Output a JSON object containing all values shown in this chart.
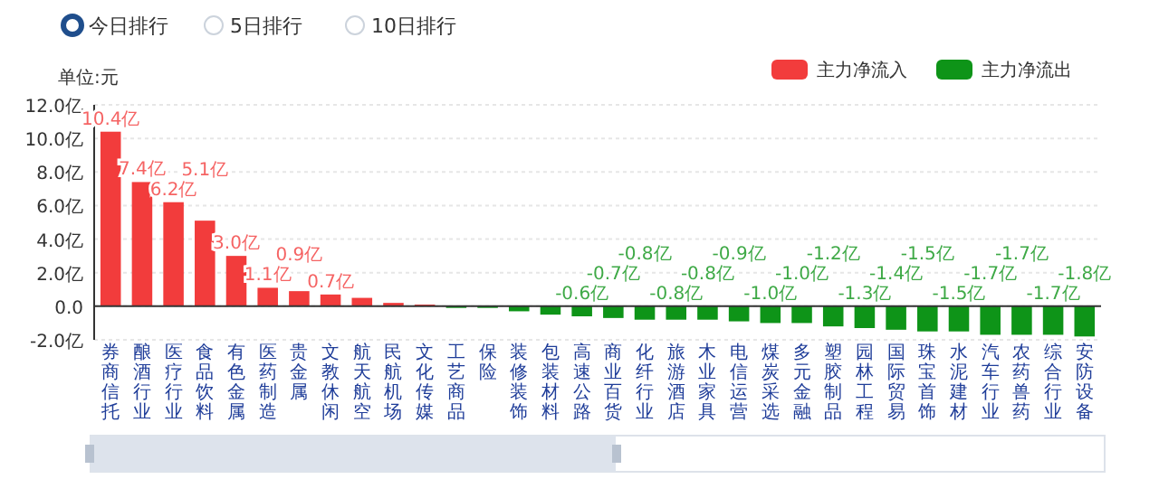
{
  "chart_data": {
    "type": "bar",
    "stacked": true,
    "categories": [
      "券商信托",
      "酿酒行业",
      "医疗行业",
      "食品饮料",
      "有色金属",
      "医药制造",
      "贵金属",
      "文教休闲",
      "航天航空",
      "民航机场",
      "文化传媒",
      "工艺商品",
      "保险",
      "装修装饰",
      "包装材料",
      "高速公路",
      "商业百货",
      "化纤行业",
      "旅游酒店",
      "木业家具",
      "电信运营",
      "煤炭采选",
      "多元金融",
      "塑胶制品",
      "园林工程",
      "国际贸易",
      "珠宝首饰",
      "水泥建材",
      "汽车行业",
      "农药兽药",
      "综合行业",
      "安防设备"
    ],
    "series": [
      {
        "name": "主力净流入",
        "color": "#f23c3c",
        "values": [
          10.4,
          7.4,
          6.2,
          5.1,
          3.0,
          1.1,
          0.9,
          0.7,
          0.5,
          0.2,
          0.1,
          null,
          null,
          null,
          null,
          null,
          null,
          null,
          null,
          null,
          null,
          null,
          null,
          null,
          null,
          null,
          null,
          null,
          null,
          null,
          null,
          null
        ],
        "value_labels": [
          "10.4亿",
          "7.4亿",
          "6.2亿",
          "5.1亿",
          "3.0亿",
          "1.1亿",
          "0.9亿",
          "0.7亿",
          null,
          null,
          null,
          null,
          null,
          null,
          null,
          null,
          null,
          null,
          null,
          null,
          null,
          null,
          null,
          null,
          null,
          null,
          null,
          null,
          null,
          null,
          null,
          null
        ]
      },
      {
        "name": "主力净流出",
        "color": "#0e9418",
        "values": [
          null,
          null,
          null,
          null,
          null,
          null,
          null,
          null,
          null,
          null,
          null,
          -0.1,
          -0.1,
          -0.3,
          -0.5,
          -0.6,
          -0.7,
          -0.8,
          -0.8,
          -0.8,
          -0.9,
          -1.0,
          -1.0,
          -1.2,
          -1.3,
          -1.4,
          -1.5,
          -1.5,
          -1.7,
          -1.7,
          -1.7,
          -1.8
        ],
        "value_labels": [
          null,
          null,
          null,
          null,
          null,
          null,
          null,
          null,
          null,
          null,
          null,
          null,
          null,
          null,
          null,
          "-0.6亿",
          "-0.7亿",
          "-0.8亿",
          "-0.8亿",
          "-0.8亿",
          "-0.9亿",
          "-1.0亿",
          "-1.0亿",
          "-1.2亿",
          "-1.3亿",
          "-1.4亿",
          "-1.5亿",
          "-1.5亿",
          "-1.7亿",
          "-1.7亿",
          "-1.7亿",
          "-1.8亿"
        ]
      }
    ],
    "ylim": [
      -2,
      12
    ],
    "yticks": [
      {
        "value": -2,
        "label": "-2.0亿"
      },
      {
        "value": 0,
        "label": "0.0"
      },
      {
        "value": 2,
        "label": "2.0亿"
      },
      {
        "value": 4,
        "label": "4.0亿"
      },
      {
        "value": 6,
        "label": "6.0亿"
      },
      {
        "value": 8,
        "label": "8.0亿"
      },
      {
        "value": 10,
        "label": "10.0亿"
      },
      {
        "value": 12,
        "label": "12.0亿"
      }
    ],
    "grid": "y",
    "legend": "top right",
    "annotations": [
      "单位:元",
      "今日排行",
      "5日排行",
      "10日排行"
    ]
  }
}
